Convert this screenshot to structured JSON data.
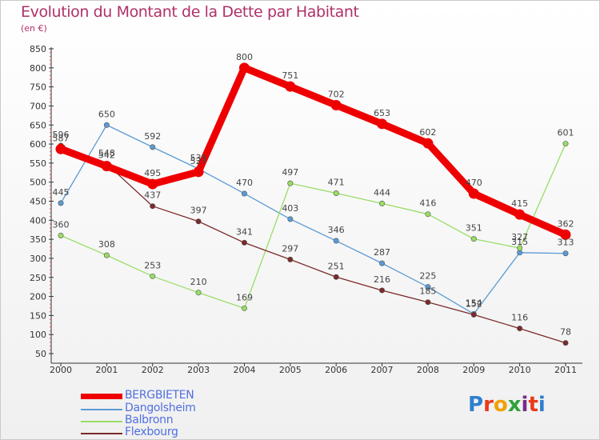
{
  "title": "Evolution du Montant de la Dette par Habitant",
  "unit_label": "(en €)",
  "chart_data": {
    "type": "line",
    "title": "Evolution du Montant de la Dette par Habitant",
    "ylabel": "(en €)",
    "x": [
      2000,
      2001,
      2002,
      2003,
      2004,
      2005,
      2006,
      2007,
      2008,
      2009,
      2010,
      2011
    ],
    "y_ticks": [
      50,
      100,
      150,
      200,
      250,
      300,
      350,
      400,
      450,
      500,
      550,
      600,
      650,
      700,
      750,
      800,
      850
    ],
    "ylim": [
      50,
      850
    ],
    "grid": false,
    "legend_position": "bottom-left",
    "series": [
      {
        "name": "BERGBIETEN",
        "color": "#ee0000",
        "values": [
          587,
          542,
          495,
          527,
          800,
          751,
          702,
          653,
          602,
          470,
          415,
          362
        ],
        "labels": [
          "587",
          "542",
          "495",
          "527",
          "800",
          "751",
          "702",
          "653",
          "602",
          "470",
          "415",
          "362"
        ]
      },
      {
        "name": "Dangolsheim",
        "color": "#5b9bd5",
        "values": [
          445,
          650,
          592,
          535,
          470,
          403,
          346,
          287,
          225,
          154,
          315,
          313
        ],
        "labels": [
          "445",
          "650",
          "592",
          "535",
          "470",
          "403",
          "346",
          "287",
          "225",
          "154",
          "315",
          "313"
        ]
      },
      {
        "name": "Balbronn",
        "color": "#99dd66",
        "values": [
          360,
          308,
          253,
          210,
          169,
          497,
          471,
          444,
          416,
          351,
          327,
          601
        ],
        "labels": [
          "360",
          "308",
          "253",
          "210",
          "169",
          "497",
          "471",
          "444",
          "416",
          "351",
          "327",
          "601"
        ]
      },
      {
        "name": "Flexbourg",
        "color": "#7a2a2a",
        "values": [
          596,
          548,
          437,
          397,
          341,
          297,
          251,
          216,
          185,
          152,
          116,
          78
        ],
        "labels": [
          "596",
          "548",
          "437",
          "397",
          "341",
          "297",
          "251",
          "216",
          "185",
          "152",
          "116",
          "78"
        ]
      }
    ]
  },
  "legend": [
    {
      "label": "BERGBIETEN",
      "color": "#ee0000"
    },
    {
      "label": "Dangolsheim",
      "color": "#5b9bd5"
    },
    {
      "label": "Balbronn",
      "color": "#99dd66"
    },
    {
      "label": "Flexbourg",
      "color": "#7a2a2a"
    }
  ],
  "logo": {
    "text": "Proxiti",
    "letter_colors": [
      "#2f7fd0",
      "#e83a1c",
      "#f0a000",
      "#2fa33a",
      "#7a2a8a",
      "#e83a1c",
      "#2f7fd0"
    ]
  }
}
